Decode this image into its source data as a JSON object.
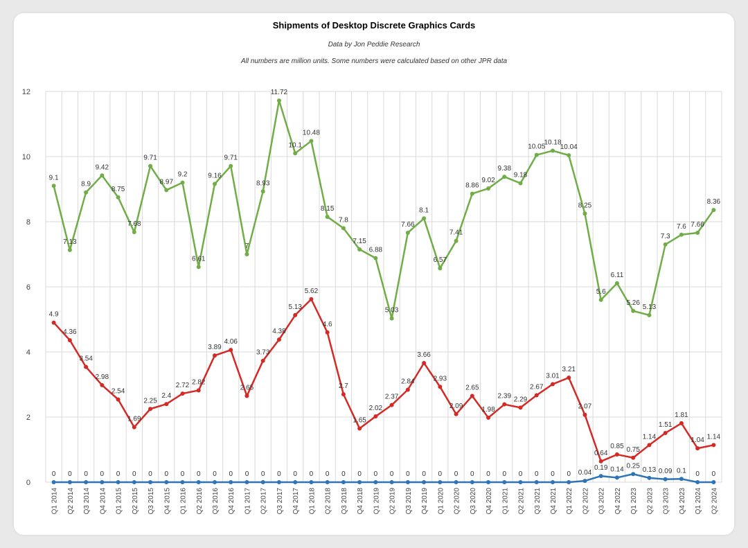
{
  "chart_data": {
    "type": "line",
    "title": "Shipments of Desktop Discrete Graphics Cards",
    "subtitle": "Data by Jon Peddie Research",
    "note": "All numbers are million units. Some numbers were calculated based on other JPR data",
    "xlabel": "",
    "ylabel": "",
    "ylim": [
      0,
      12
    ],
    "yticks": [
      0,
      2,
      4,
      6,
      8,
      10,
      12
    ],
    "grid": true,
    "categories": [
      "Q1 2014",
      "Q2 2014",
      "Q3 2014",
      "Q4 2014",
      "Q1 2015",
      "Q2 2015",
      "Q3 2015",
      "Q4 2015",
      "Q1 2016",
      "Q2 2016",
      "Q3 2016",
      "Q4 2016",
      "Q1 2017",
      "Q2 2017",
      "Q3 2017",
      "Q4 2017",
      "Q1 2018",
      "Q2 2018",
      "Q3 2018",
      "Q4 2018",
      "Q1 2019",
      "Q2 2019",
      "Q3 2019",
      "Q4 2019",
      "Q1 2020",
      "Q2 2020",
      "Q3 2020",
      "Q4 2020",
      "Q1 2021",
      "Q2 2021",
      "Q3 2021",
      "Q4 2021",
      "Q1 2022",
      "Q2 2022",
      "Q3 2022",
      "Q4 2022",
      "Q1 2023",
      "Q2 2023",
      "Q3 2023",
      "Q4 2023",
      "Q1 2024",
      "Q2 2024"
    ],
    "series": [
      {
        "color": "#70ad47",
        "values": [
          9.1,
          7.13,
          8.9,
          9.42,
          8.75,
          7.68,
          9.71,
          8.97,
          9.2,
          6.61,
          9.16,
          9.71,
          7,
          8.93,
          11.72,
          10.1,
          10.48,
          8.15,
          7.8,
          7.15,
          6.88,
          5.03,
          7.66,
          8.1,
          6.57,
          7.41,
          8.86,
          9.02,
          9.38,
          9.18,
          10.05,
          10.18,
          10.04,
          8.25,
          5.6,
          6.11,
          5.26,
          5.13,
          7.3,
          7.6,
          7.66,
          8.36
        ]
      },
      {
        "color": "#d42a26",
        "values": [
          4.9,
          4.36,
          3.54,
          2.98,
          2.54,
          1.69,
          2.25,
          2.4,
          2.72,
          2.82,
          3.89,
          4.06,
          2.65,
          3.73,
          4.38,
          5.13,
          5.62,
          4.6,
          2.7,
          1.65,
          2.02,
          2.37,
          2.84,
          3.66,
          2.93,
          2.09,
          2.65,
          1.98,
          2.39,
          2.29,
          2.67,
          3.01,
          3.21,
          2.07,
          0.64,
          0.85,
          0.75,
          1.14,
          1.51,
          1.81,
          1.04,
          1.14
        ]
      },
      {
        "color": "#2e75b6",
        "values": [
          0,
          0,
          0,
          0,
          0,
          0,
          0,
          0,
          0,
          0,
          0,
          0,
          0,
          0,
          0,
          0,
          0,
          0,
          0,
          0,
          0,
          0,
          0,
          0,
          0,
          0,
          0,
          0,
          0,
          0,
          0,
          0,
          0,
          0.04,
          0.19,
          0.14,
          0.25,
          0.13,
          0.09,
          0.1,
          0,
          0
        ]
      }
    ]
  }
}
